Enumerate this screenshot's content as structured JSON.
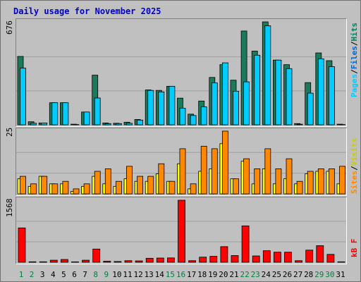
{
  "title": "Daily usage for November 2025",
  "colors": {
    "pages": "#00ccff",
    "files": "#008060",
    "hits": "#006633",
    "visits": "#ffff00",
    "sites": "#ff8800",
    "kbf": "#ff0000",
    "weekend": "#008040",
    "weekday": "#000000",
    "slash": "#000000"
  },
  "panels": {
    "hits": {
      "max_label": "676",
      "legend": {
        "pages": "Pages",
        "sep1": "/",
        "files": "Files",
        "sep2": "/",
        "hits": "Hits"
      }
    },
    "visits": {
      "max_label": "25",
      "legend": {
        "sites": "Sites",
        "sep1": "/",
        "visits": "Visits"
      }
    },
    "kbf": {
      "max_label": "1568",
      "legend": {
        "kbf": "kB F"
      }
    }
  },
  "chart_data": [
    {
      "type": "bar",
      "name": "hits_files_pages",
      "categories": [
        "1",
        "2",
        "3",
        "4",
        "5",
        "6",
        "7",
        "8",
        "9",
        "10",
        "11",
        "12",
        "13",
        "14",
        "15",
        "16",
        "17",
        "18",
        "19",
        "20",
        "21",
        "22",
        "23",
        "24",
        "25",
        "26",
        "27",
        "28",
        "29",
        "30",
        "31"
      ],
      "weekend": [
        "1",
        "2",
        "8",
        "9",
        "15",
        "16",
        "22",
        "23",
        "29",
        "30"
      ],
      "ylim": [
        0,
        676
      ],
      "series": [
        {
          "name": "Hits",
          "values": [
            449,
            20,
            12,
            145,
            145,
            4,
            84,
            326,
            12,
            10,
            17,
            35,
            229,
            226,
            253,
            175,
            70,
            156,
            311,
            395,
            293,
            616,
            484,
            676,
            425,
            395,
            8,
            277,
            472,
            421,
            4
          ]
        },
        {
          "name": "Files",
          "values": [
            449,
            20,
            12,
            145,
            145,
            4,
            84,
            326,
            12,
            10,
            17,
            35,
            229,
            226,
            253,
            175,
            70,
            156,
            311,
            395,
            293,
            616,
            484,
            676,
            425,
            395,
            8,
            277,
            472,
            421,
            4
          ]
        },
        {
          "name": "Pages",
          "values": [
            372,
            10,
            12,
            145,
            145,
            2,
            84,
            176,
            8,
            8,
            10,
            31,
            226,
            216,
            253,
            109,
            61,
            118,
            275,
            407,
            220,
            282,
            457,
            650,
            425,
            369,
            4,
            208,
            433,
            382,
            2
          ]
        }
      ]
    },
    {
      "type": "bar",
      "name": "visits_sites",
      "categories": [
        "1",
        "2",
        "3",
        "4",
        "5",
        "6",
        "7",
        "8",
        "9",
        "10",
        "11",
        "12",
        "13",
        "14",
        "15",
        "16",
        "17",
        "18",
        "19",
        "20",
        "21",
        "22",
        "23",
        "24",
        "25",
        "26",
        "27",
        "28",
        "29",
        "30",
        "31"
      ],
      "ylim": [
        0,
        25
      ],
      "series": [
        {
          "name": "Sites",
          "values": [
            7,
            4,
            7,
            4,
            5,
            2,
            4,
            9,
            10,
            5,
            11,
            7,
            7,
            12,
            5,
            18,
            4,
            19,
            18,
            25,
            6,
            14,
            10,
            18,
            10,
            14,
            5,
            9,
            10,
            10,
            11
          ]
        },
        {
          "name": "Visits",
          "values": [
            6,
            3,
            7,
            4,
            4,
            1,
            3,
            7,
            4,
            3,
            6,
            5,
            5,
            8,
            5,
            12,
            2,
            9,
            10,
            20,
            6,
            13,
            4,
            10,
            4,
            6,
            4,
            8,
            9,
            9,
            4
          ]
        }
      ]
    },
    {
      "type": "bar",
      "name": "kbf",
      "categories": [
        "1",
        "2",
        "3",
        "4",
        "5",
        "6",
        "7",
        "8",
        "9",
        "10",
        "11",
        "12",
        "13",
        "14",
        "15",
        "16",
        "17",
        "18",
        "19",
        "20",
        "21",
        "22",
        "23",
        "24",
        "25",
        "26",
        "27",
        "28",
        "29",
        "30",
        "31"
      ],
      "ylim": [
        0,
        1568
      ],
      "series": [
        {
          "name": "kB F",
          "values": [
            868,
            12,
            12,
            52,
            70,
            10,
            52,
            334,
            28,
            20,
            40,
            35,
            101,
            107,
            110,
            1568,
            40,
            130,
            150,
            395,
            170,
            920,
            160,
            292,
            255,
            255,
            40,
            307,
            420,
            200,
            12
          ]
        }
      ]
    }
  ]
}
